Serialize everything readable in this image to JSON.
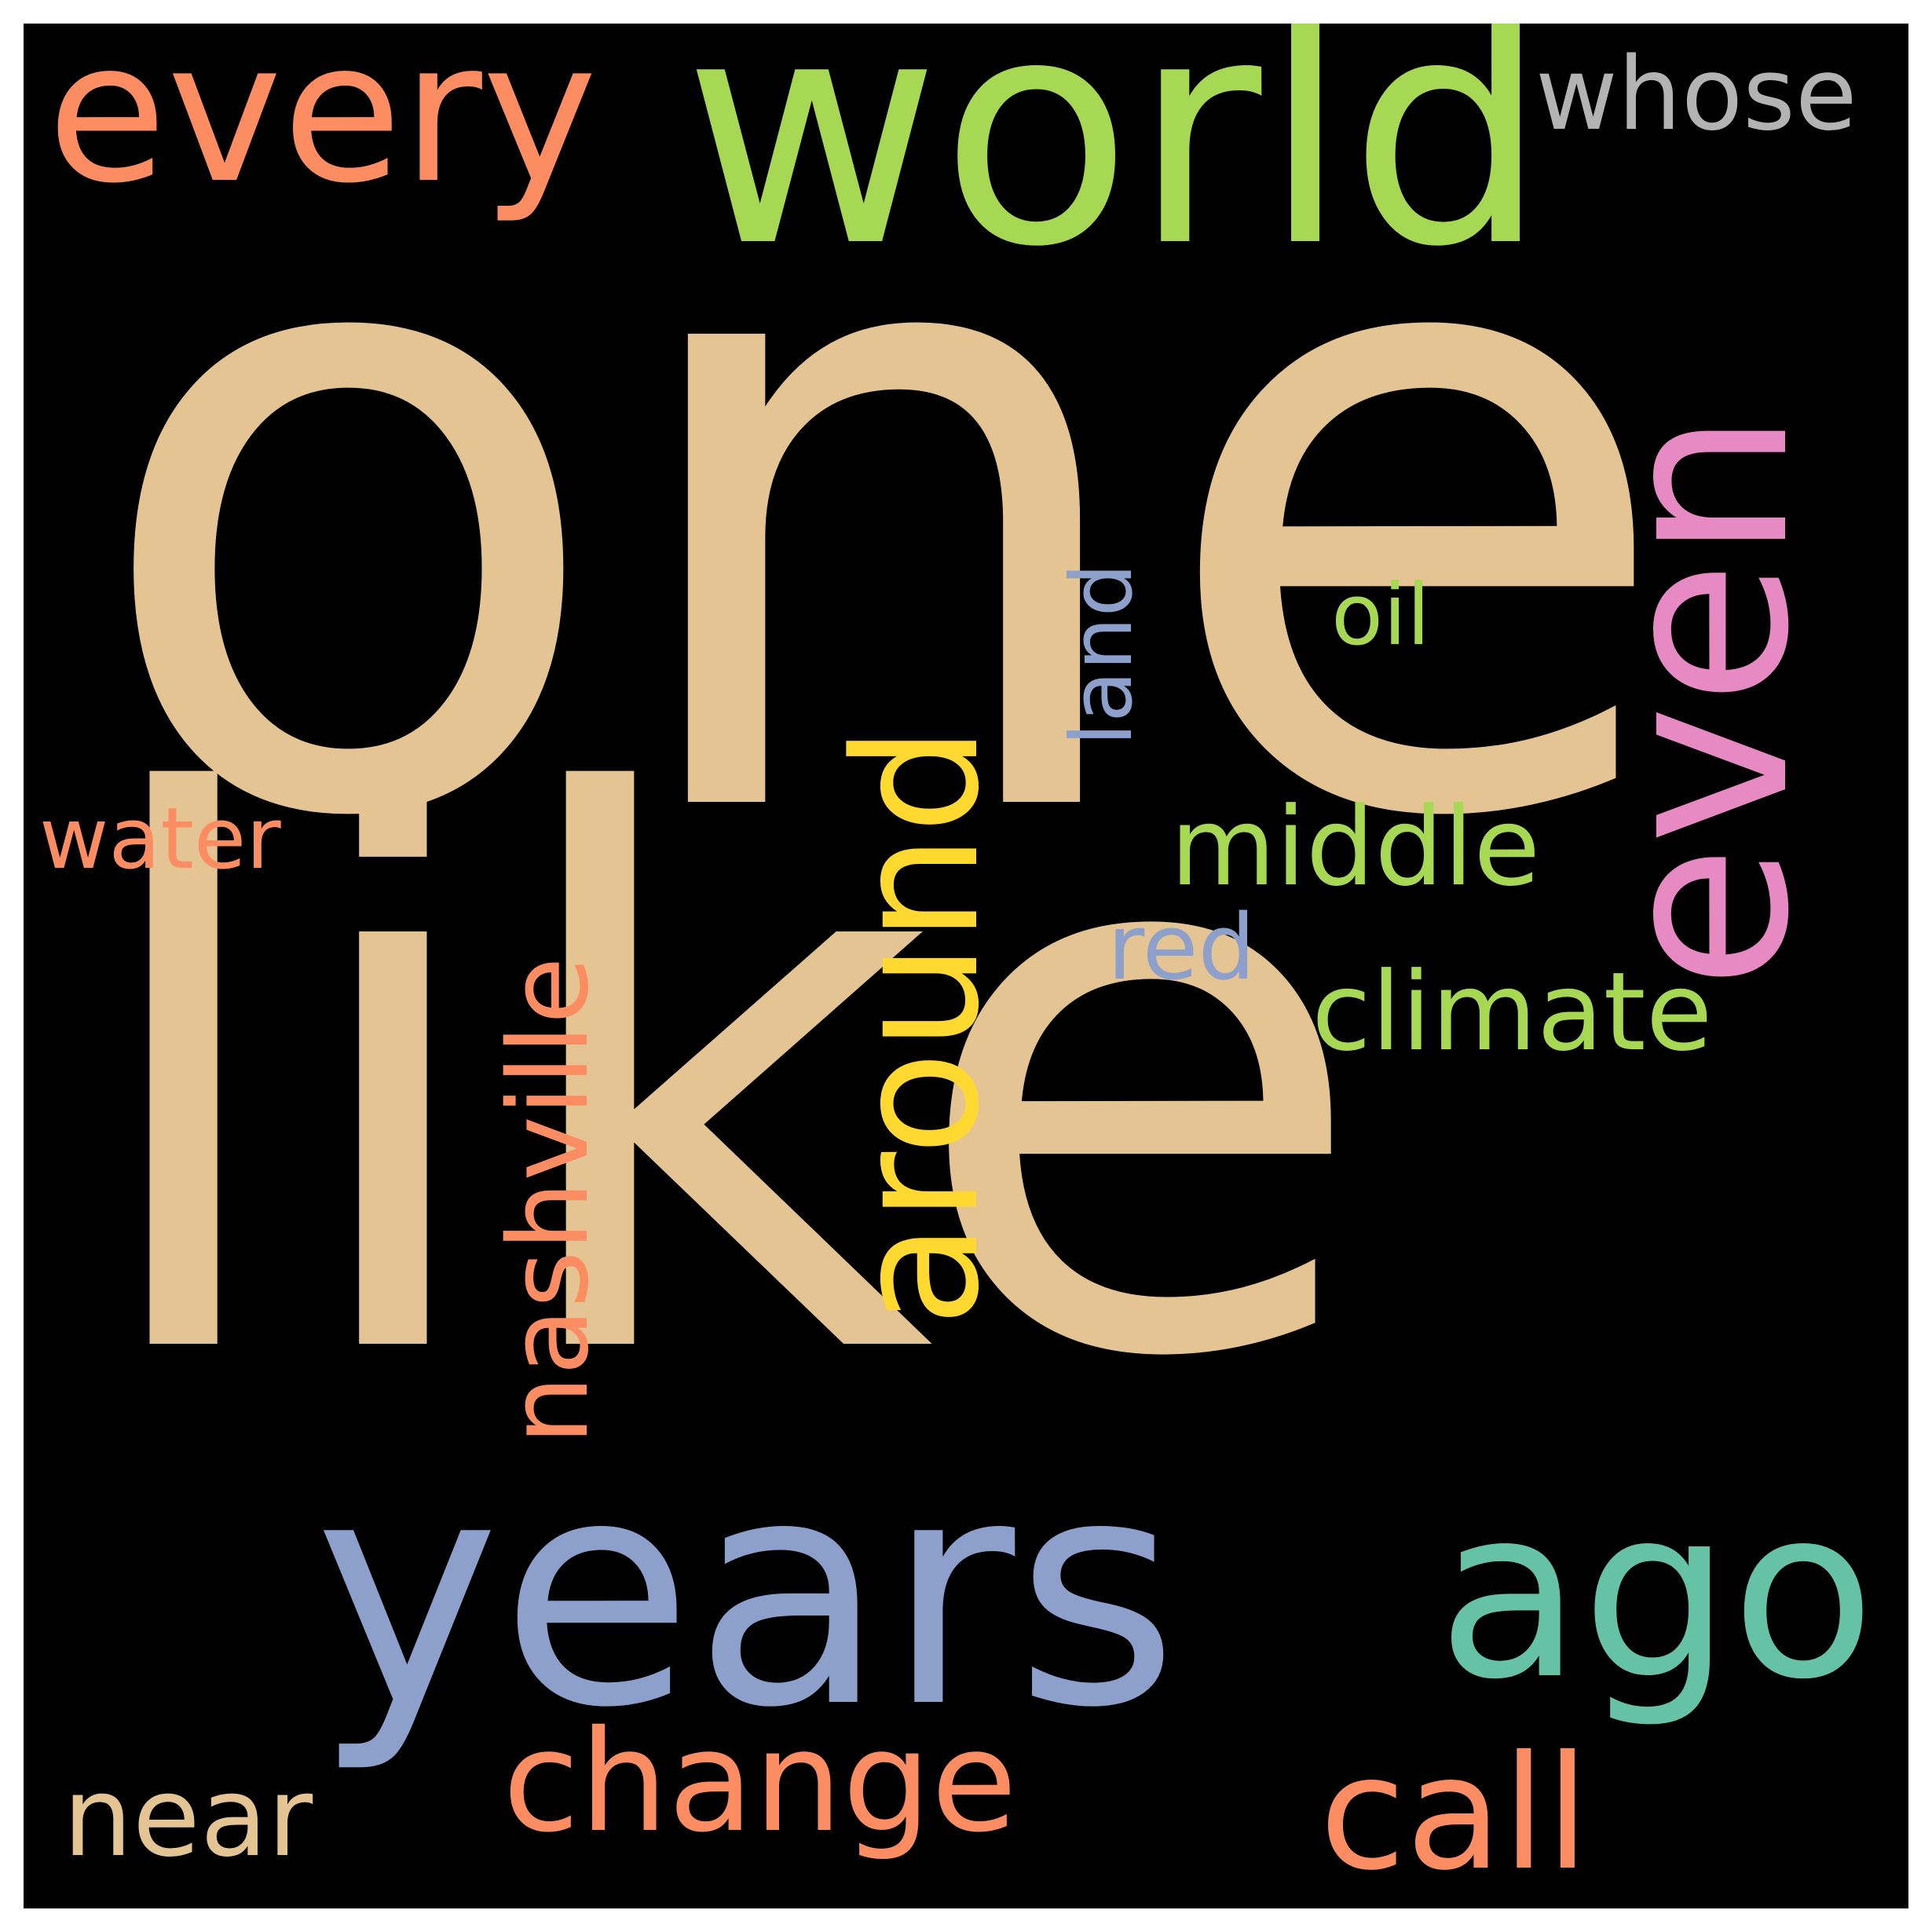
{
  "words": {
    "one": {
      "text": "one",
      "color": "#e5c494"
    },
    "like": {
      "text": "like",
      "color": "#e5c494"
    },
    "world": {
      "text": "world",
      "color": "#a6d854"
    },
    "every": {
      "text": "every",
      "color": "#fc8d62"
    },
    "even": {
      "text": "even",
      "color": "#e78ac3"
    },
    "years": {
      "text": "years",
      "color": "#8da0cb"
    },
    "ago": {
      "text": "ago",
      "color": "#66c2a5"
    },
    "around": {
      "text": "around",
      "color": "#ffd92f"
    },
    "change": {
      "text": "change",
      "color": "#fc8d62"
    },
    "call": {
      "text": "call",
      "color": "#fc8d62"
    },
    "nashville": {
      "text": "nashville",
      "color": "#fc8d62"
    },
    "middle": {
      "text": "middle",
      "color": "#a6d854"
    },
    "climate": {
      "text": "climate",
      "color": "#a6d854"
    },
    "whose": {
      "text": "whose",
      "color": "#b3b3b3"
    },
    "oil": {
      "text": "oil",
      "color": "#a6d854"
    },
    "land": {
      "text": "land",
      "color": "#8da0cb"
    },
    "red": {
      "text": "red",
      "color": "#8da0cb"
    },
    "water": {
      "text": "water",
      "color": "#fc8d62"
    },
    "near": {
      "text": "near",
      "color": "#e5c494"
    }
  }
}
